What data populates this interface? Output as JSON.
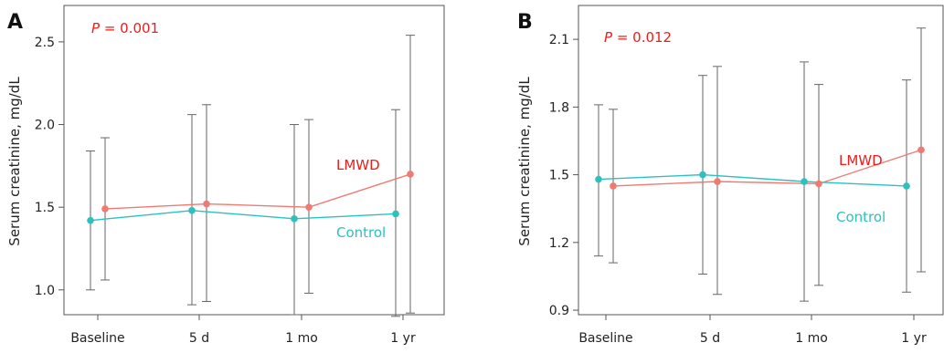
{
  "colors": {
    "lmwd": "#f07a72",
    "control": "#2bc1bf",
    "pvalue": "#ee1c1c",
    "errorbar": "#666666"
  },
  "chart_data": [
    {
      "type": "line",
      "panel_label": "A",
      "pvalue_prefix": "P",
      "pvalue_text": " = 0.001",
      "ylabel": "Serum creatinine, mg/dL",
      "xlabel": "",
      "categories": [
        "Baseline",
        "5 d",
        "1 mo",
        "1 yr"
      ],
      "ylim": [
        0.85,
        2.72
      ],
      "yticks": [
        1.0,
        1.5,
        2.0,
        2.5
      ],
      "ytick_labels": [
        "1.0",
        "1.5",
        "2.0",
        "2.5"
      ],
      "series": [
        {
          "name": "LMWD",
          "key": "lmwd",
          "values": [
            1.49,
            1.52,
            1.5,
            1.7
          ],
          "err_low": [
            1.06,
            0.93,
            0.98,
            0.86
          ],
          "err_high": [
            1.92,
            2.12,
            2.03,
            2.54
          ]
        },
        {
          "name": "Control",
          "key": "control",
          "values": [
            1.42,
            1.48,
            1.43,
            1.46
          ],
          "err_low": [
            1.0,
            0.91,
            0.85,
            0.84
          ],
          "err_high": [
            1.84,
            2.06,
            2.0,
            2.09
          ]
        }
      ]
    },
    {
      "type": "line",
      "panel_label": "B",
      "pvalue_prefix": "P",
      "pvalue_text": " = 0.012",
      "ylabel": "Serum creatinine, mg/dL",
      "xlabel": "",
      "categories": [
        "Baseline",
        "5 d",
        "1 mo",
        "1 yr"
      ],
      "ylim": [
        0.88,
        2.25
      ],
      "yticks": [
        0.9,
        1.2,
        1.5,
        1.8,
        2.1
      ],
      "ytick_labels": [
        "0.9",
        "1.2",
        "1.5",
        "1.8",
        "2.1"
      ],
      "series": [
        {
          "name": "LMWD",
          "key": "lmwd",
          "values": [
            1.45,
            1.47,
            1.46,
            1.61
          ],
          "err_low": [
            1.11,
            0.97,
            1.01,
            1.07
          ],
          "err_high": [
            1.79,
            1.98,
            1.9,
            2.15
          ]
        },
        {
          "name": "Control",
          "key": "control",
          "values": [
            1.48,
            1.5,
            1.47,
            1.45
          ],
          "err_low": [
            1.14,
            1.06,
            0.94,
            0.98
          ],
          "err_high": [
            1.81,
            1.94,
            2.0,
            1.92
          ]
        }
      ]
    }
  ]
}
